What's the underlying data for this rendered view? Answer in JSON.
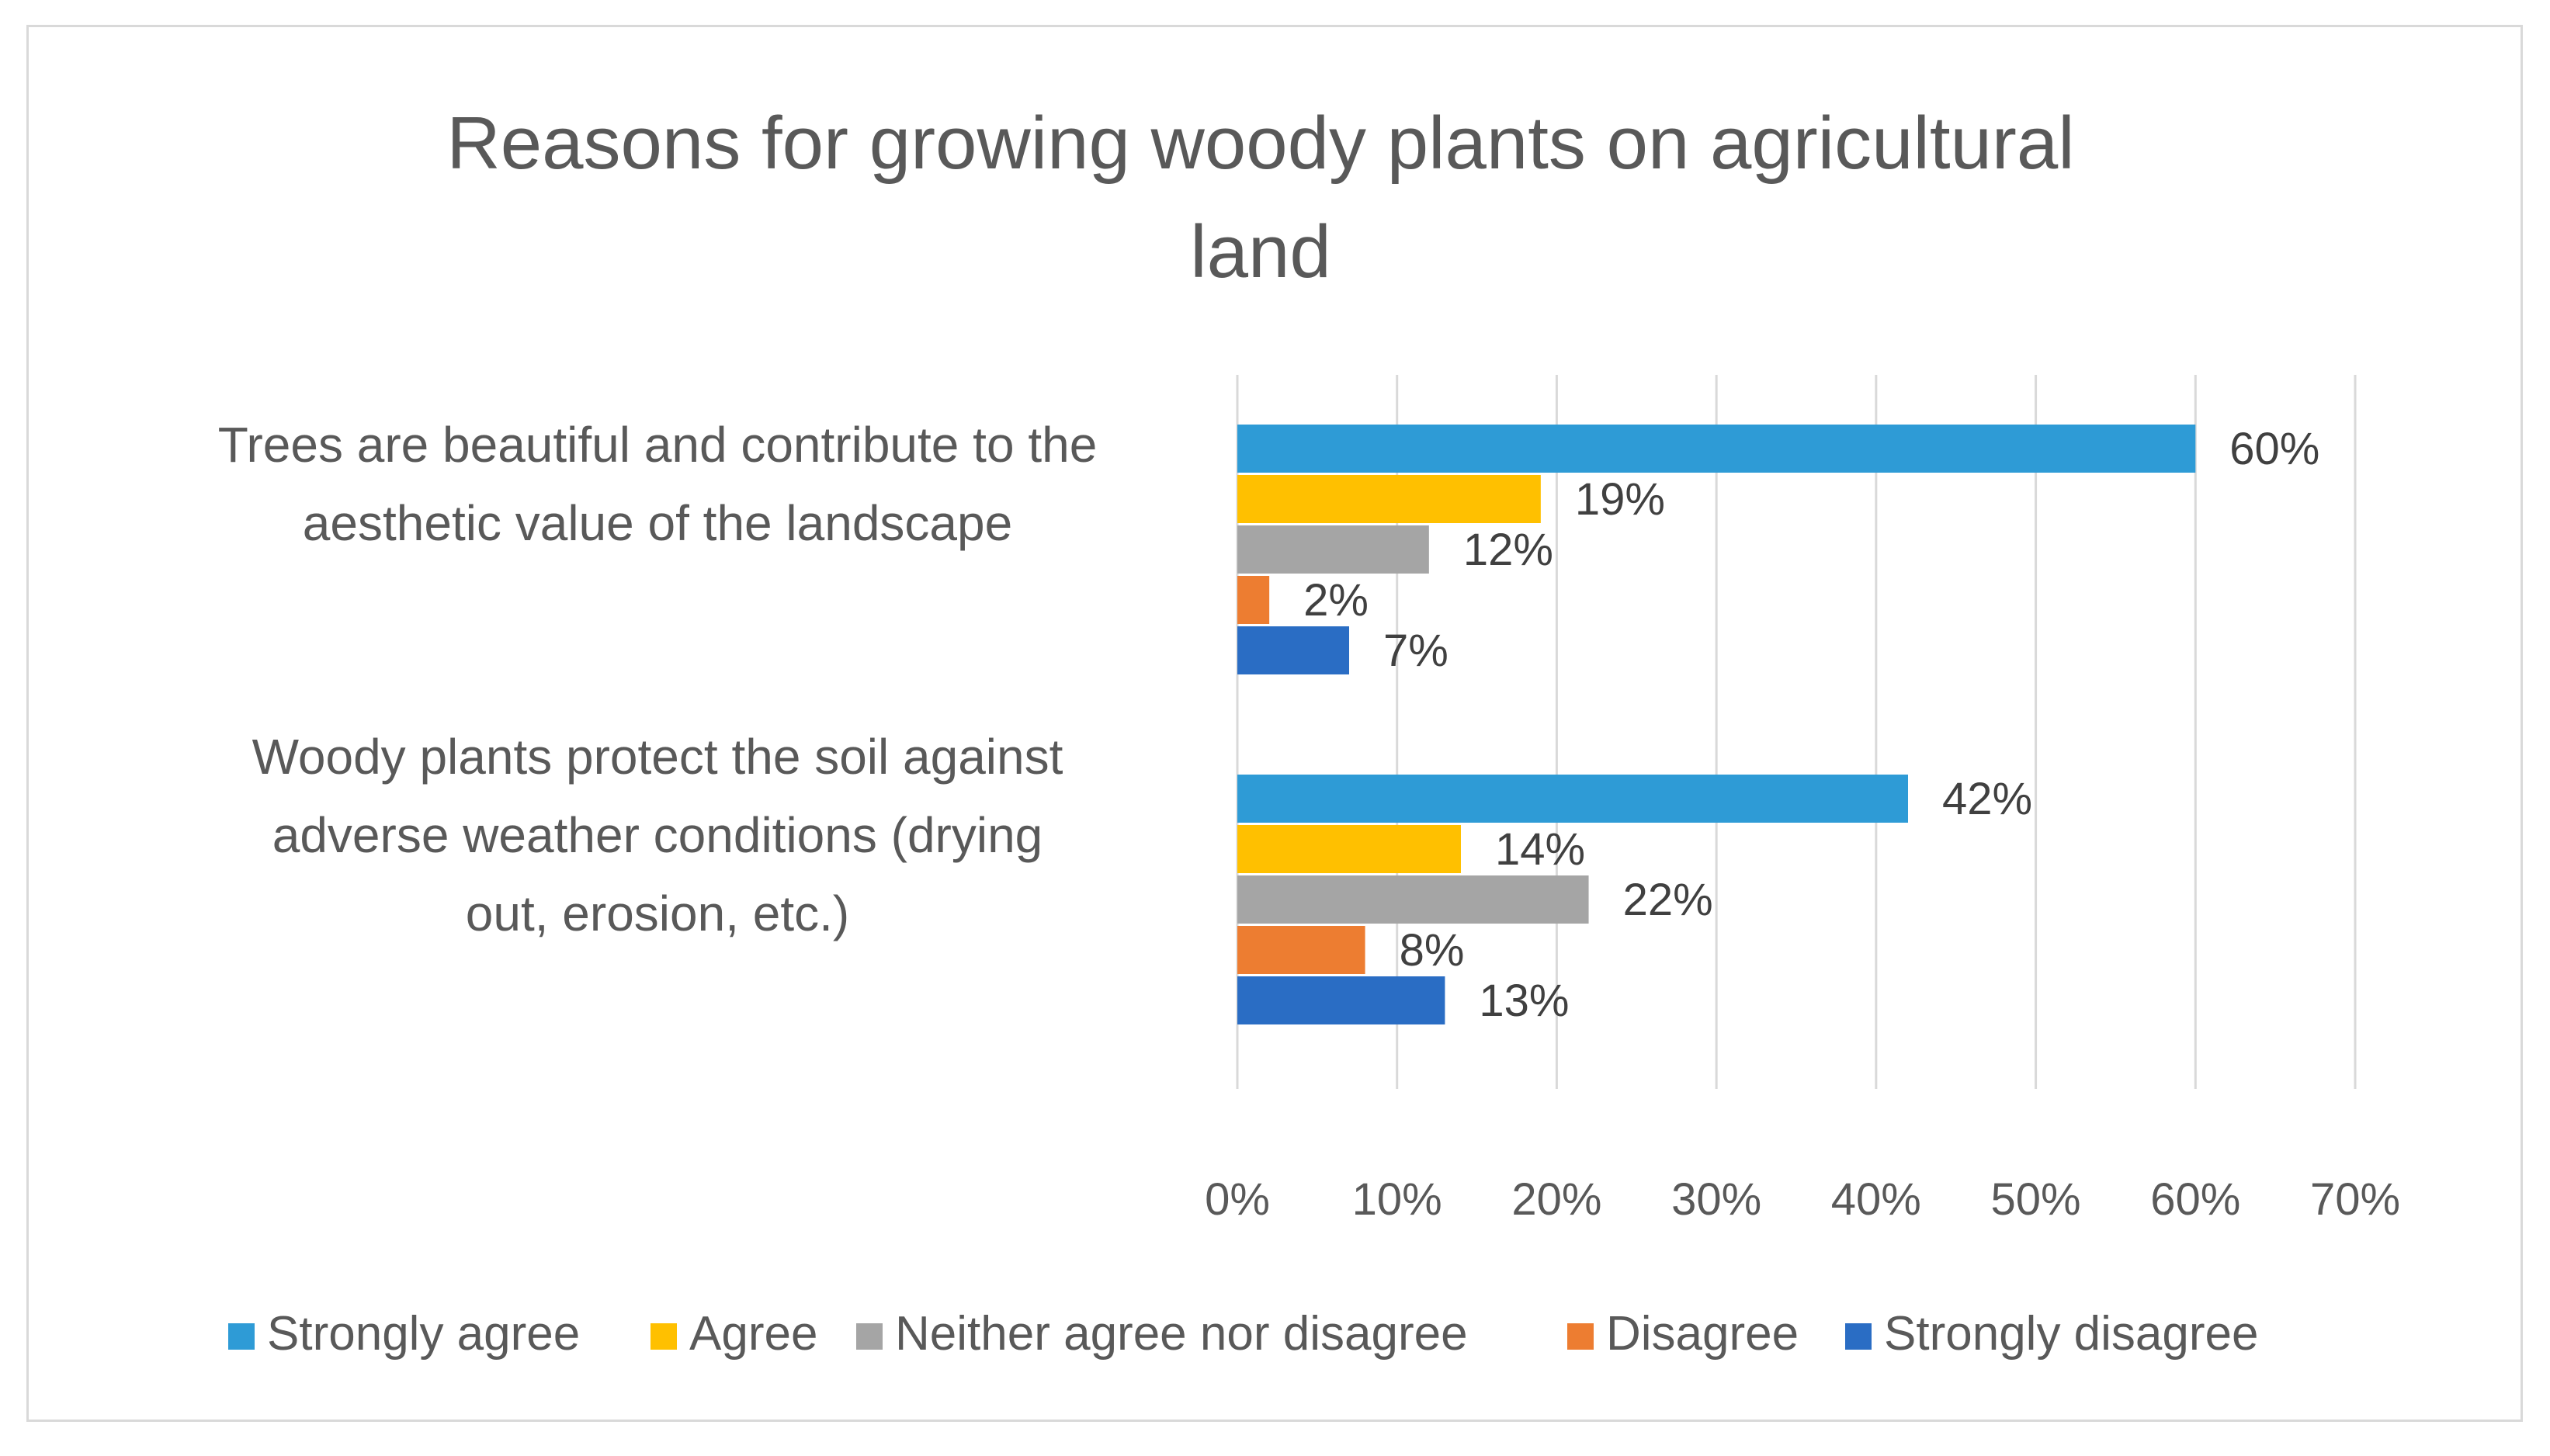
{
  "chart_data": {
    "type": "bar",
    "orientation": "horizontal",
    "title": "Reasons for growing woody plants on agricultural land",
    "categories": [
      "Trees are beautiful and contribute to the aesthetic value of the landscape",
      "Woody plants protect the soil against adverse weather conditions (drying out, erosion, etc.)"
    ],
    "series": [
      {
        "name": "Strongly agree",
        "color": "#2e9bd6",
        "values": [
          60,
          42
        ],
        "labels": [
          "60%",
          "42%"
        ]
      },
      {
        "name": "Agree",
        "color": "#ffc000",
        "values": [
          19,
          14
        ],
        "labels": [
          "19%",
          "14%"
        ]
      },
      {
        "name": "Neither agree nor disagree",
        "color": "#a5a5a5",
        "values": [
          12,
          22
        ],
        "labels": [
          "12%",
          "22%"
        ]
      },
      {
        "name": "Disagree",
        "color": "#ed7d31",
        "values": [
          2,
          8
        ],
        "labels": [
          "2%",
          "8%"
        ]
      },
      {
        "name": "Strongly disagree",
        "color": "#2a6dc4",
        "values": [
          7,
          13
        ],
        "labels": [
          "7%",
          "13%"
        ]
      }
    ],
    "xlim": [
      0,
      70
    ],
    "x_ticks": [
      "0%",
      "10%",
      "20%",
      "30%",
      "40%",
      "50%",
      "60%",
      "70%"
    ],
    "grid": true,
    "legend_position": "bottom"
  }
}
